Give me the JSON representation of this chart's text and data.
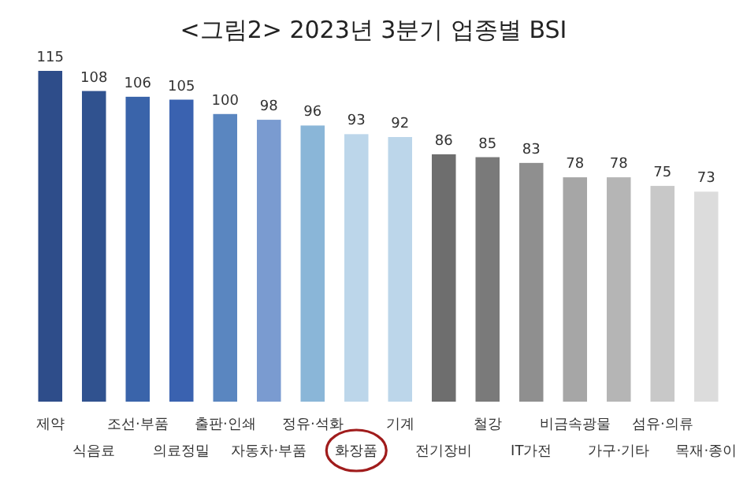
{
  "chart_data": {
    "type": "bar",
    "title": "<그림2> 2023년 3분기 업종별 BSI",
    "categories": [
      "제약",
      "식음료",
      "조선·부품",
      "의료정밀",
      "출판·인쇄",
      "자동차·부품",
      "정유·석화",
      "화장품",
      "기계",
      "전기장비",
      "철강",
      "IT가전",
      "비금속광물",
      "가구·기타",
      "섬유·의류",
      "목재·종이"
    ],
    "values": [
      115,
      108,
      106,
      105,
      100,
      98,
      96,
      93,
      92,
      86,
      85,
      83,
      78,
      78,
      75,
      73
    ],
    "colors": [
      "#2e4d8a",
      "#30528f",
      "#3a64aa",
      "#3a62b0",
      "#5a86c0",
      "#7a9bd0",
      "#8ab6d8",
      "#bcd6ea",
      "#bcd6ea",
      "#6e6e6e",
      "#7a7a7a",
      "#8f8f8f",
      "#a6a6a6",
      "#b5b5b5",
      "#c8c8c8",
      "#dcdcdc"
    ],
    "data_labels": true
  }
}
